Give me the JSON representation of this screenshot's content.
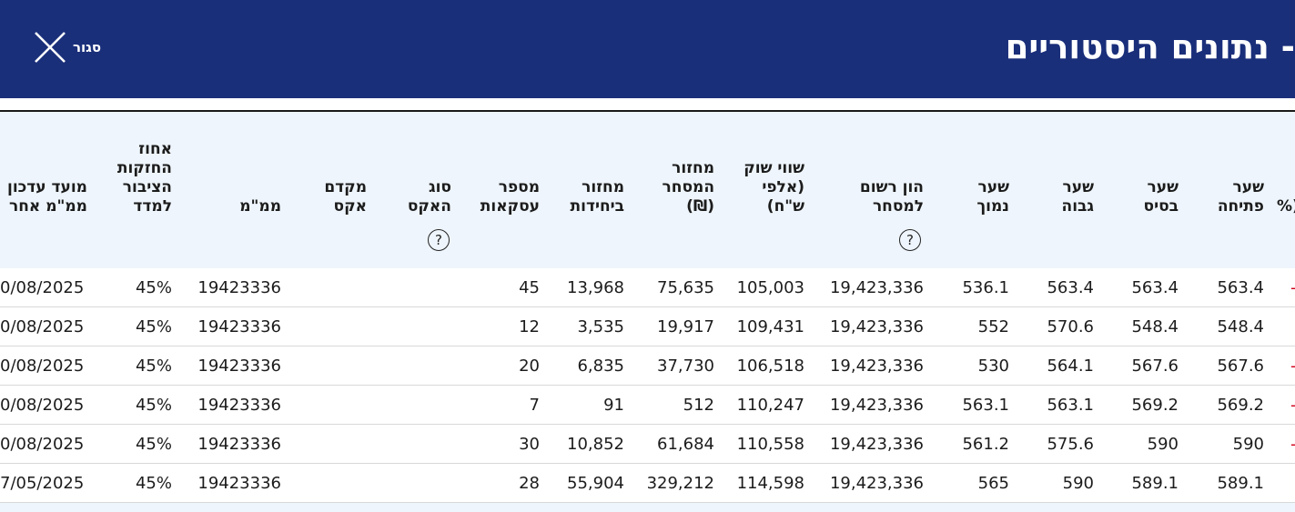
{
  "header": {
    "title": "- נתונים היסטוריים",
    "close_label": "סגור"
  },
  "table": {
    "columns": [
      {
        "key": "pct",
        "label": "%)"
      },
      {
        "key": "open",
        "label": "שער פתיחה"
      },
      {
        "key": "base",
        "label": "שער בסיס"
      },
      {
        "key": "high",
        "label": "שער גבוה"
      },
      {
        "key": "low",
        "label": "שער נמוך"
      },
      {
        "key": "capital",
        "label": "הון רשום למסחר",
        "help": "?"
      },
      {
        "key": "market_value",
        "label": "שווי שוק (אלפי ש\"ח)"
      },
      {
        "key": "turnover_nis",
        "label": "מחזור המסחר (₪)"
      },
      {
        "key": "turnover_units",
        "label": "מחזור ביחידות"
      },
      {
        "key": "deals",
        "label": "מספר עסקאות"
      },
      {
        "key": "ex_type",
        "label": "סוג האקס",
        "help": "?"
      },
      {
        "key": "ex_factor",
        "label": "מקדם אקס"
      },
      {
        "key": "mmm",
        "label": "ממ\"מ"
      },
      {
        "key": "public_holding",
        "label": "אחוז החזקות הציבור למדד"
      },
      {
        "key": "update_date",
        "label": "מועד עדכון ממ\"מ אחר"
      }
    ],
    "rows": [
      {
        "open": "563.4",
        "base": "563.4",
        "high": "563.4",
        "low": "536.1",
        "capital": "19,423,336",
        "market_value": "105,003",
        "turnover_nis": "75,635",
        "turnover_units": "13,968",
        "deals": "45",
        "ex_type": "",
        "ex_factor": "",
        "mmm": "19423336",
        "public_holding": "45%",
        "update_date": "0/08/2025",
        "pct_mark": "-"
      },
      {
        "open": "548.4",
        "base": "548.4",
        "high": "570.6",
        "low": "552",
        "capital": "19,423,336",
        "market_value": "109,431",
        "turnover_nis": "19,917",
        "turnover_units": "3,535",
        "deals": "12",
        "ex_type": "",
        "ex_factor": "",
        "mmm": "19423336",
        "public_holding": "45%",
        "update_date": "0/08/2025",
        "pct_mark": ""
      },
      {
        "open": "567.6",
        "base": "567.6",
        "high": "564.1",
        "low": "530",
        "capital": "19,423,336",
        "market_value": "106,518",
        "turnover_nis": "37,730",
        "turnover_units": "6,835",
        "deals": "20",
        "ex_type": "",
        "ex_factor": "",
        "mmm": "19423336",
        "public_holding": "45%",
        "update_date": "0/08/2025",
        "pct_mark": "-"
      },
      {
        "open": "569.2",
        "base": "569.2",
        "high": "563.1",
        "low": "563.1",
        "capital": "19,423,336",
        "market_value": "110,247",
        "turnover_nis": "512",
        "turnover_units": "91",
        "deals": "7",
        "ex_type": "",
        "ex_factor": "",
        "mmm": "19423336",
        "public_holding": "45%",
        "update_date": "0/08/2025",
        "pct_mark": "-"
      },
      {
        "open": "590",
        "base": "590",
        "high": "575.6",
        "low": "561.2",
        "capital": "19,423,336",
        "market_value": "110,558",
        "turnover_nis": "61,684",
        "turnover_units": "10,852",
        "deals": "30",
        "ex_type": "",
        "ex_factor": "",
        "mmm": "19423336",
        "public_holding": "45%",
        "update_date": "0/08/2025",
        "pct_mark": "-"
      },
      {
        "open": "589.1",
        "base": "589.1",
        "high": "590",
        "low": "565",
        "capital": "19,423,336",
        "market_value": "114,598",
        "turnover_nis": "329,212",
        "turnover_units": "55,904",
        "deals": "28",
        "ex_type": "",
        "ex_factor": "",
        "mmm": "19423336",
        "public_holding": "45%",
        "update_date": "7/05/2025",
        "pct_mark": ""
      }
    ]
  },
  "icons": {
    "close": "close-icon",
    "help": "help-circle-icon"
  },
  "colors": {
    "header_bg": "#1a2f7a",
    "table_head_bg": "#eef5fc",
    "negative": "#d0021b"
  }
}
